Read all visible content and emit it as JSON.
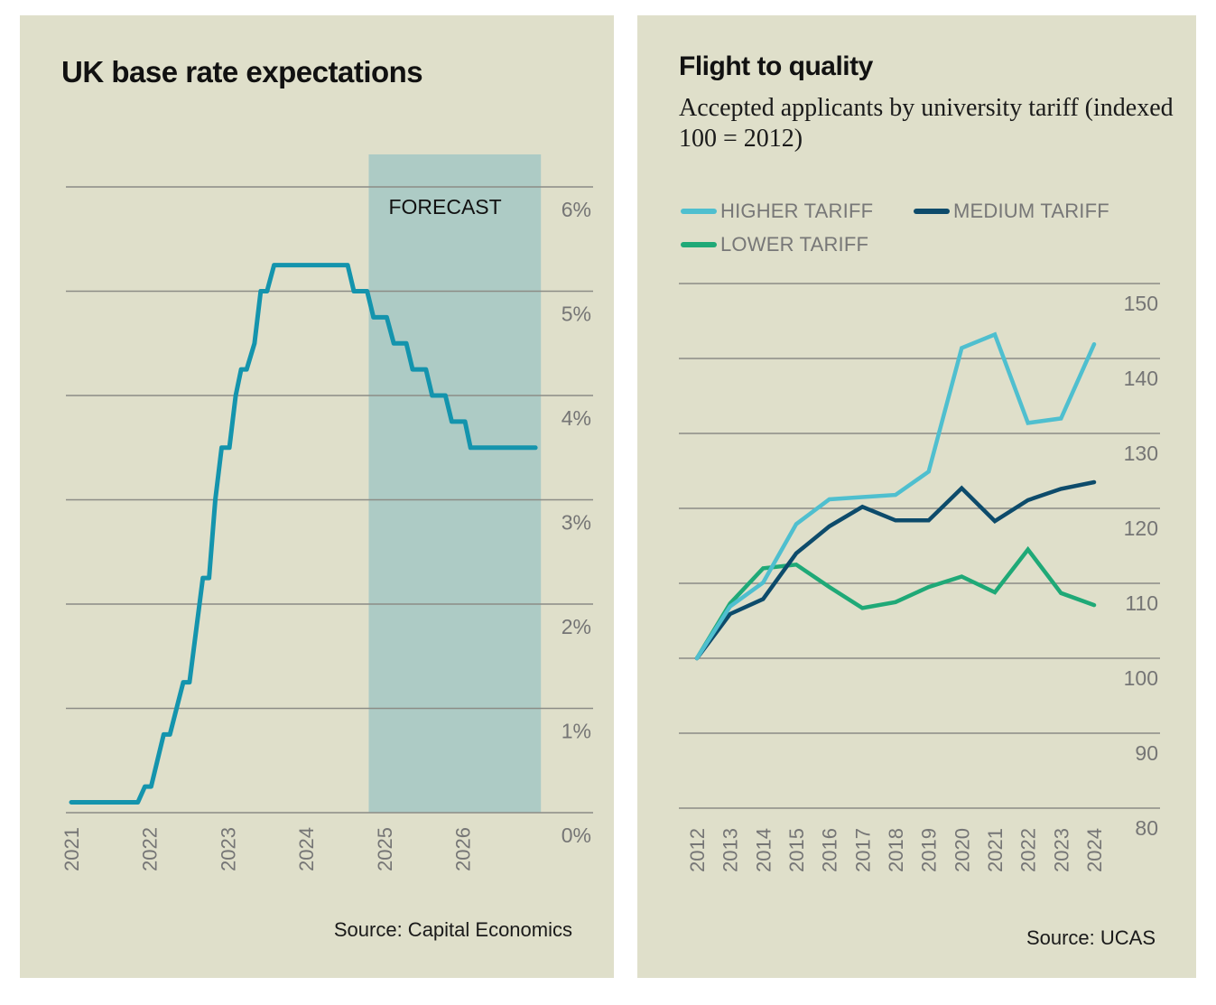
{
  "colors": {
    "panel_bg": "#dfdfca",
    "forecast_band": "#adcbc5",
    "rate_line": "#1494ad",
    "higher": "#4fbfcf",
    "medium": "#0d4b6b",
    "lower": "#1fa977",
    "grid": "#8c8c86",
    "tick_text": "#757575"
  },
  "chart_data": [
    {
      "type": "line",
      "title": "UK base rate expectations",
      "source": "Source: Capital Economics",
      "annotation": "FORECAST",
      "forecast_range": [
        2024.8,
        2027.0
      ],
      "xlabel": "",
      "ylabel": "",
      "xlim": [
        2021.0,
        2027.0
      ],
      "ylim": [
        0,
        6
      ],
      "x_ticks": [
        "2021",
        "2022",
        "2023",
        "2024",
        "2025",
        "2026"
      ],
      "y_ticks": [
        "0%",
        "1%",
        "2%",
        "3%",
        "4%",
        "5%",
        "6%"
      ],
      "y_tick_values": [
        0,
        1,
        2,
        3,
        4,
        5,
        6
      ],
      "grid": true,
      "step_series": [
        {
          "x": 2021.0,
          "y": 0.1
        },
        {
          "x": 2021.85,
          "y": 0.1
        },
        {
          "x": 2021.94,
          "y": 0.25
        },
        {
          "x": 2022.02,
          "y": 0.25
        },
        {
          "x": 2022.18,
          "y": 0.75
        },
        {
          "x": 2022.26,
          "y": 0.75
        },
        {
          "x": 2022.43,
          "y": 1.25
        },
        {
          "x": 2022.51,
          "y": 1.25
        },
        {
          "x": 2022.68,
          "y": 2.25
        },
        {
          "x": 2022.76,
          "y": 2.25
        },
        {
          "x": 2022.84,
          "y": 3.0
        },
        {
          "x": 2022.92,
          "y": 3.5
        },
        {
          "x": 2023.02,
          "y": 3.5
        },
        {
          "x": 2023.1,
          "y": 4.0
        },
        {
          "x": 2023.17,
          "y": 4.25
        },
        {
          "x": 2023.24,
          "y": 4.25
        },
        {
          "x": 2023.34,
          "y": 4.5
        },
        {
          "x": 2023.42,
          "y": 5.0
        },
        {
          "x": 2023.5,
          "y": 5.0
        },
        {
          "x": 2023.59,
          "y": 5.25
        },
        {
          "x": 2024.53,
          "y": 5.25
        },
        {
          "x": 2024.61,
          "y": 5.0
        },
        {
          "x": 2024.78,
          "y": 5.0
        },
        {
          "x": 2024.86,
          "y": 4.75
        },
        {
          "x": 2025.03,
          "y": 4.75
        },
        {
          "x": 2025.12,
          "y": 4.5
        },
        {
          "x": 2025.28,
          "y": 4.5
        },
        {
          "x": 2025.36,
          "y": 4.25
        },
        {
          "x": 2025.53,
          "y": 4.25
        },
        {
          "x": 2025.61,
          "y": 4.0
        },
        {
          "x": 2025.78,
          "y": 4.0
        },
        {
          "x": 2025.86,
          "y": 3.75
        },
        {
          "x": 2026.03,
          "y": 3.75
        },
        {
          "x": 2026.1,
          "y": 3.5
        },
        {
          "x": 2026.93,
          "y": 3.5
        }
      ]
    },
    {
      "type": "line",
      "title": "Flight to quality",
      "subtitle": "Accepted applicants by university tariff (indexed 100 = 2012)",
      "source": "Source: UCAS",
      "xlabel": "",
      "ylabel": "",
      "ylim": [
        80,
        150
      ],
      "y_ticks": [
        "80",
        "90",
        "100",
        "110",
        "120",
        "130",
        "140",
        "150"
      ],
      "y_tick_values": [
        80,
        90,
        100,
        110,
        120,
        130,
        140,
        150
      ],
      "grid": true,
      "legend_position": "top-left",
      "x": [
        "2012",
        "2013",
        "2014",
        "2015",
        "2016",
        "2017",
        "2018",
        "2019",
        "2020",
        "2021",
        "2022",
        "2023",
        "2024"
      ],
      "series": [
        {
          "name": "HIGHER TARIFF",
          "key": "higher",
          "values": [
            100,
            106.9,
            110.1,
            117.9,
            121.2,
            121.5,
            121.8,
            124.9,
            141.4,
            143.2,
            131.4,
            132.0,
            141.9
          ]
        },
        {
          "name": "MEDIUM TARIFF",
          "key": "medium",
          "values": [
            100,
            105.9,
            107.9,
            114.0,
            117.6,
            120.2,
            118.4,
            118.4,
            122.7,
            118.3,
            121.1,
            122.6,
            123.5
          ]
        },
        {
          "name": "LOWER TARIFF",
          "key": "lower",
          "values": [
            100,
            107.3,
            112.0,
            112.5,
            109.5,
            106.7,
            107.5,
            109.5,
            110.9,
            108.8,
            114.5,
            108.7,
            107.1
          ]
        }
      ]
    }
  ]
}
